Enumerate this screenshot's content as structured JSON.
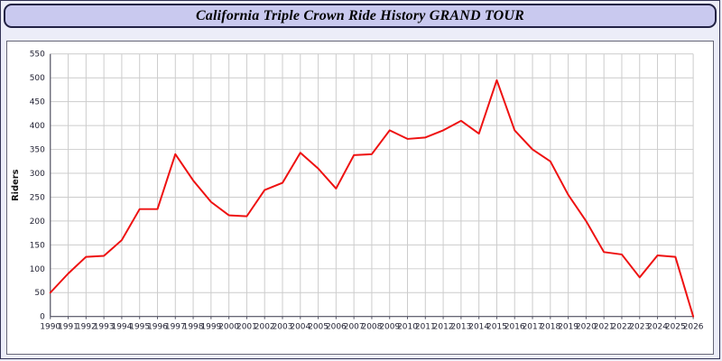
{
  "title": "California Triple Crown Ride History GRAND TOUR",
  "colors": {
    "background": "#ecedf8",
    "title_bar_bg": "#c9c9ef",
    "title_bar_border": "#222244",
    "panel_bg": "#ffffff",
    "panel_border": "#666677",
    "grid": "#cccccc",
    "axis": "#555566",
    "line": "#ee1111",
    "tick_text": "#222233",
    "ylabel_text": "#111111"
  },
  "chart_data": {
    "type": "line",
    "title": "California Triple Crown Ride History GRAND TOUR",
    "xlabel": "",
    "ylabel": "Riders",
    "x": [
      1990,
      1991,
      1992,
      1993,
      1994,
      1995,
      1996,
      1997,
      1998,
      1999,
      2000,
      2001,
      2002,
      2003,
      2004,
      2005,
      2006,
      2007,
      2008,
      2009,
      2010,
      2011,
      2012,
      2013,
      2014,
      2015,
      2016,
      2017,
      2018,
      2019,
      2020,
      2021,
      2022,
      2023,
      2024,
      2025,
      2026
    ],
    "series": [
      {
        "name": "Riders",
        "color": "#ee1111",
        "values": [
          50,
          90,
          125,
          127,
          160,
          225,
          225,
          340,
          285,
          240,
          212,
          210,
          265,
          280,
          343,
          310,
          268,
          338,
          340,
          390,
          372,
          375,
          390,
          410,
          383,
          495,
          390,
          350,
          325,
          255,
          200,
          135,
          130,
          82,
          128,
          125,
          0
        ]
      }
    ],
    "ylim": [
      0,
      550
    ],
    "ytick_step": 50,
    "grid": true,
    "legend": "none"
  }
}
